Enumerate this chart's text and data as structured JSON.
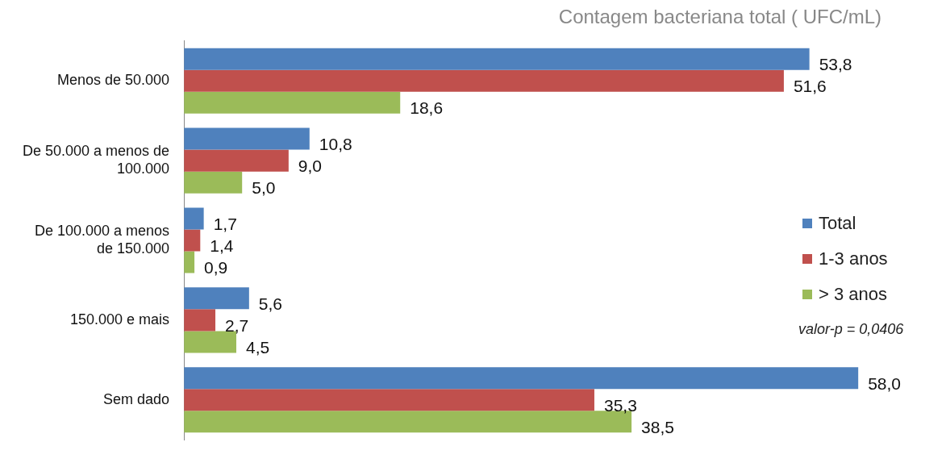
{
  "chart_data": {
    "type": "bar",
    "orientation": "horizontal",
    "title": "Contagem bacteriana total ( UFC/mL)",
    "categories": [
      "Menos de 50.000",
      "De 50.000 a menos de 100.000",
      "De 100.000 a menos de 150.000",
      "150.000 e mais",
      "Sem dado"
    ],
    "series": [
      {
        "name": "Total",
        "color": "#4f81bd",
        "values": [
          53.8,
          10.8,
          1.7,
          5.6,
          58.0
        ],
        "value_labels": [
          "53,8",
          "10,8",
          "1,7",
          "5,6",
          "58,0"
        ]
      },
      {
        "name": "1-3 anos",
        "color": "#c0504d",
        "values": [
          51.6,
          9.0,
          1.4,
          2.7,
          35.3
        ],
        "value_labels": [
          "51,6",
          "9,0",
          "1,4",
          "2,7",
          "35,3"
        ]
      },
      {
        "name": "> 3 anos",
        "color": "#9bbb59",
        "values": [
          18.6,
          5.0,
          0.9,
          4.5,
          38.5
        ],
        "value_labels": [
          "18,6",
          "5,0",
          "0,9",
          "4,5",
          "38,5"
        ]
      }
    ],
    "annotations": [
      "valor-p = 0,0406"
    ],
    "legend": "right",
    "grid": false,
    "tick_labels": "y"
  }
}
